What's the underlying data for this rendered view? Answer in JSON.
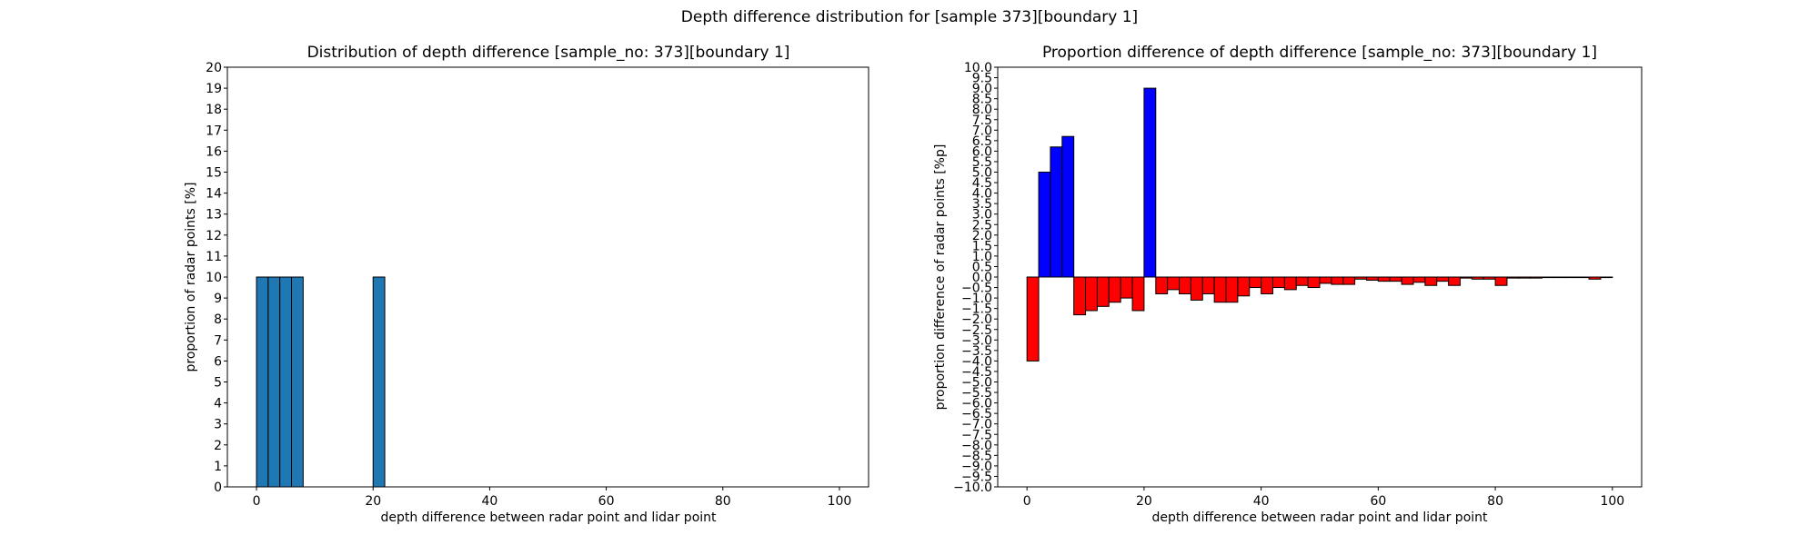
{
  "figure": {
    "title": "Depth difference distribution for [sample 373][boundary 1]"
  },
  "chart_data": [
    {
      "type": "bar",
      "title": "Distribution of depth difference [sample_no: 373][boundary 1]",
      "xlabel": "depth difference between radar point and lidar point",
      "ylabel": "proportion of radar points [%]",
      "xlim": [
        -5,
        105
      ],
      "ylim": [
        0,
        20
      ],
      "xticks": [
        "0",
        "20",
        "40",
        "60",
        "80",
        "100"
      ],
      "yticks": [
        "0",
        "1",
        "2",
        "3",
        "4",
        "5",
        "6",
        "7",
        "8",
        "9",
        "10",
        "11",
        "12",
        "13",
        "14",
        "15",
        "16",
        "17",
        "18",
        "19",
        "20"
      ],
      "bin_width": 2,
      "bars": [
        {
          "x0": 0,
          "value": 10
        },
        {
          "x0": 2,
          "value": 10
        },
        {
          "x0": 4,
          "value": 10
        },
        {
          "x0": 6,
          "value": 10
        },
        {
          "x0": 20,
          "value": 10
        }
      ],
      "colors": {
        "bar": "#1f77b4"
      },
      "grid": false
    },
    {
      "type": "bar",
      "title": "Proportion difference of depth difference [sample_no: 373][boundary 1]",
      "xlabel": "depth difference between radar point and lidar point",
      "ylabel": "proportion difference of radar points [%p]",
      "xlim": [
        -5,
        105
      ],
      "ylim": [
        -10,
        10
      ],
      "xticks": [
        "0",
        "20",
        "40",
        "60",
        "80",
        "100"
      ],
      "yticks": [
        "−10.0",
        "−9.5",
        "−9.0",
        "−8.5",
        "−8.0",
        "−7.5",
        "−7.0",
        "−6.5",
        "−6.0",
        "−5.5",
        "−5.0",
        "−4.5",
        "−4.0",
        "−3.5",
        "−3.0",
        "−2.5",
        "−2.0",
        "−1.5",
        "−1.0",
        "−0.5",
        "0.0",
        "0.5",
        "1.0",
        "1.5",
        "2.0",
        "2.5",
        "3.0",
        "3.5",
        "4.0",
        "4.5",
        "5.0",
        "5.5",
        "6.0",
        "6.5",
        "7.0",
        "7.5",
        "8.0",
        "8.5",
        "9.0",
        "9.5",
        "10.0"
      ],
      "bin_width": 2,
      "bars": [
        {
          "x0": 0,
          "value": -4.0
        },
        {
          "x0": 2,
          "value": 5.0
        },
        {
          "x0": 4,
          "value": 6.2
        },
        {
          "x0": 6,
          "value": 6.7
        },
        {
          "x0": 8,
          "value": -1.8
        },
        {
          "x0": 10,
          "value": -1.6
        },
        {
          "x0": 12,
          "value": -1.4
        },
        {
          "x0": 14,
          "value": -1.2
        },
        {
          "x0": 16,
          "value": -1.0
        },
        {
          "x0": 18,
          "value": -1.6
        },
        {
          "x0": 20,
          "value": 9.0
        },
        {
          "x0": 22,
          "value": -0.8
        },
        {
          "x0": 24,
          "value": -0.6
        },
        {
          "x0": 26,
          "value": -0.8
        },
        {
          "x0": 28,
          "value": -1.1
        },
        {
          "x0": 30,
          "value": -0.8
        },
        {
          "x0": 32,
          "value": -1.2
        },
        {
          "x0": 34,
          "value": -1.2
        },
        {
          "x0": 36,
          "value": -0.9
        },
        {
          "x0": 38,
          "value": -0.5
        },
        {
          "x0": 40,
          "value": -0.8
        },
        {
          "x0": 42,
          "value": -0.5
        },
        {
          "x0": 44,
          "value": -0.6
        },
        {
          "x0": 46,
          "value": -0.4
        },
        {
          "x0": 48,
          "value": -0.5
        },
        {
          "x0": 50,
          "value": -0.3
        },
        {
          "x0": 52,
          "value": -0.35
        },
        {
          "x0": 54,
          "value": -0.35
        },
        {
          "x0": 56,
          "value": -0.1
        },
        {
          "x0": 58,
          "value": -0.15
        },
        {
          "x0": 60,
          "value": -0.2
        },
        {
          "x0": 62,
          "value": -0.2
        },
        {
          "x0": 64,
          "value": -0.35
        },
        {
          "x0": 66,
          "value": -0.25
        },
        {
          "x0": 68,
          "value": -0.4
        },
        {
          "x0": 70,
          "value": -0.2
        },
        {
          "x0": 72,
          "value": -0.4
        },
        {
          "x0": 74,
          "value": -0.05
        },
        {
          "x0": 76,
          "value": -0.1
        },
        {
          "x0": 78,
          "value": -0.1
        },
        {
          "x0": 80,
          "value": -0.4
        },
        {
          "x0": 82,
          "value": -0.05
        },
        {
          "x0": 84,
          "value": -0.05
        },
        {
          "x0": 86,
          "value": -0.05
        },
        {
          "x0": 88,
          "value": -0.02
        },
        {
          "x0": 90,
          "value": -0.02
        },
        {
          "x0": 92,
          "value": -0.02
        },
        {
          "x0": 94,
          "value": -0.02
        },
        {
          "x0": 96,
          "value": -0.1
        },
        {
          "x0": 98,
          "value": -0.02
        }
      ],
      "colors": {
        "positive": "#0000ff",
        "negative": "#ff0000"
      },
      "grid": false
    }
  ]
}
